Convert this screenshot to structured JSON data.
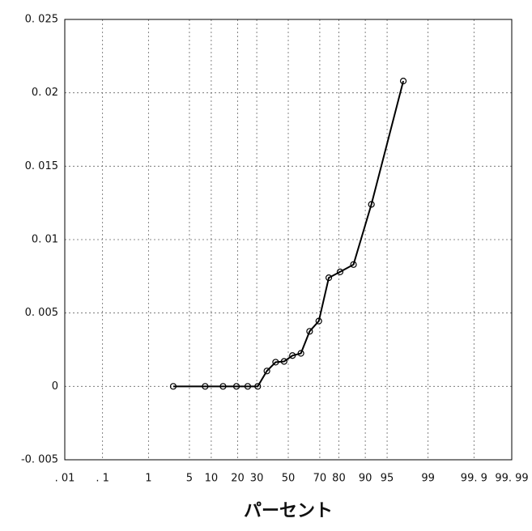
{
  "chart_data": {
    "type": "line",
    "xscale": "probability",
    "xlabel": "パーセント",
    "x": [
      2.78,
      8.33,
      13.89,
      19.44,
      25,
      30.56,
      36.11,
      41.67,
      47.22,
      52.78,
      58.33,
      63.89,
      69.44,
      75,
      80.56,
      86.11,
      91.67,
      97.22
    ],
    "series": [
      {
        "color": "#000000",
        "values": [
          0,
          0,
          0,
          0,
          0,
          0,
          0.00105,
          0.00165,
          0.0017,
          0.0021,
          0.00225,
          0.00375,
          0.00445,
          0.0074,
          0.0078,
          0.0083,
          0.0124,
          0.0208
        ]
      }
    ],
    "xlim": [
      0.01,
      99.99
    ],
    "xticks": [
      {
        "value": 0.01,
        "label": ". 01"
      },
      {
        "value": 0.1,
        "label": ". 1"
      },
      1,
      5,
      10,
      20,
      30,
      50,
      70,
      80,
      90,
      95,
      99,
      {
        "value": 99.9,
        "label": "99. 9"
      },
      {
        "value": 99.99,
        "label": "99. 99"
      }
    ],
    "ylim": [
      -0.005,
      0.025
    ],
    "yticks": [
      {
        "value": -0.005,
        "label": "-0. 005"
      },
      0,
      {
        "value": 0.005,
        "label": "0. 005"
      },
      {
        "value": 0.01,
        "label": "0. 01"
      },
      {
        "value": 0.015,
        "label": "0. 015"
      },
      {
        "value": 0.02,
        "label": "0. 02"
      },
      {
        "value": 0.025,
        "label": "0. 025"
      }
    ],
    "grid": true
  }
}
